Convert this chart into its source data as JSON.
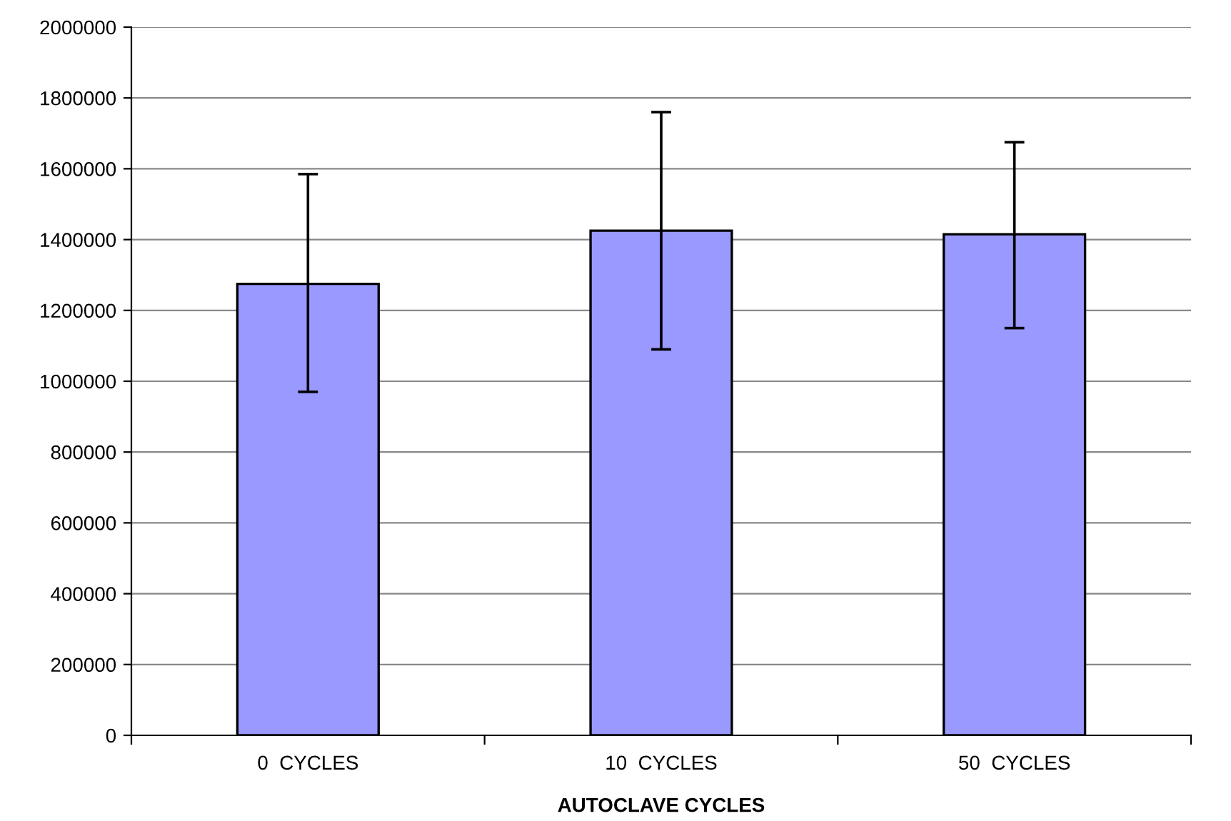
{
  "chart_data": {
    "type": "bar",
    "xlabel": "AUTOCLAVE CYCLES",
    "categories": [
      "0  CYCLES",
      "10  CYCLES",
      "50  CYCLES"
    ],
    "values": [
      1275000,
      1425000,
      1415000
    ],
    "errors": [
      [
        970000,
        1585000
      ],
      [
        1090000,
        1760000
      ],
      [
        1150000,
        1675000
      ]
    ],
    "color": "#9999ff",
    "ylim": [
      0,
      2000000
    ],
    "yticks": [
      0,
      200000,
      400000,
      600000,
      800000,
      1000000,
      1200000,
      1400000,
      1600000,
      1800000,
      2000000
    ],
    "grid": "y",
    "legend": false
  }
}
